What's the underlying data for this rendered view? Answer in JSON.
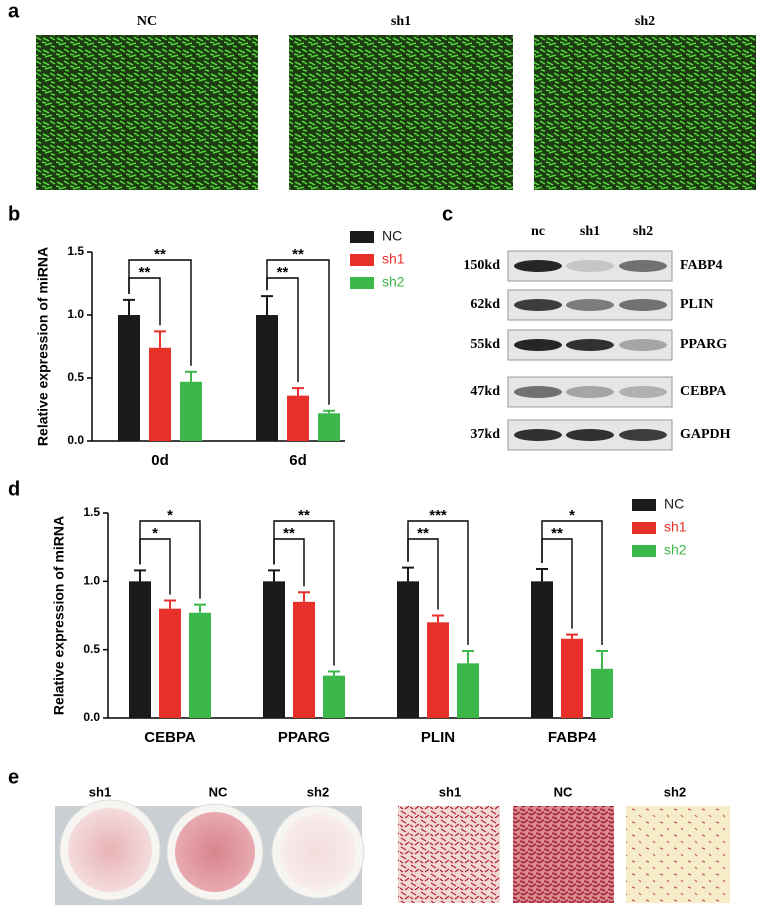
{
  "panels": [
    "a",
    "b",
    "c",
    "d",
    "e"
  ],
  "fluorescence": [
    "NC",
    "sh1",
    "sh2"
  ],
  "blot": {
    "lanes": [
      "nc",
      "sh1",
      "sh2"
    ],
    "rows": [
      {
        "size": "150kd",
        "protein": "FABP4"
      },
      {
        "size": "62kd",
        "protein": "PLIN"
      },
      {
        "size": "55kd",
        "protein": "PPARG"
      },
      {
        "size": "47kd",
        "protein": "CEBPA"
      },
      {
        "size": "37kd",
        "protein": "GAPDH"
      }
    ]
  },
  "staining": {
    "dishes": [
      "sh1",
      "NC",
      "sh2"
    ],
    "micrographs": [
      "sh1",
      "NC",
      "sh2"
    ]
  },
  "chart_data": [
    {
      "type": "bar",
      "ylabel": "Relative expression of miRNA",
      "categories": [
        "0d",
        "6d"
      ],
      "series": [
        {
          "name": "NC",
          "color": "#1a1a1a",
          "values": [
            1.0,
            1.0
          ],
          "errors": [
            0.12,
            0.15
          ]
        },
        {
          "name": "sh1",
          "color": "#e8302a",
          "values": [
            0.74,
            0.36
          ],
          "errors": [
            0.13,
            0.06
          ]
        },
        {
          "name": "sh2",
          "color": "#3cb84a",
          "values": [
            0.47,
            0.22
          ],
          "errors": [
            0.08,
            0.02
          ]
        }
      ],
      "significance": [
        [
          "**",
          "**"
        ],
        [
          "**",
          "**"
        ]
      ],
      "ylim": [
        0,
        1.5
      ],
      "yticks": [
        {
          "value": 0,
          "label": "0.0"
        },
        0.5,
        {
          "value": 1,
          "label": "1.0"
        },
        1.5
      ]
    },
    {
      "type": "bar",
      "ylabel": "Relative expression of miRNA",
      "categories": [
        "CEBPA",
        "PPARG",
        "PLIN",
        "FABP4"
      ],
      "series": [
        {
          "name": "NC",
          "color": "#1a1a1a",
          "values": [
            1.0,
            1.0,
            1.0,
            1.0
          ],
          "errors": [
            0.08,
            0.08,
            0.1,
            0.09
          ]
        },
        {
          "name": "sh1",
          "color": "#e8302a",
          "values": [
            0.8,
            0.85,
            0.7,
            0.58
          ],
          "errors": [
            0.06,
            0.07,
            0.05,
            0.03
          ]
        },
        {
          "name": "sh2",
          "color": "#3cb84a",
          "values": [
            0.77,
            0.31,
            0.4,
            0.36
          ],
          "errors": [
            0.06,
            0.03,
            0.09,
            0.13
          ]
        }
      ],
      "significance": [
        [
          "*",
          "*"
        ],
        [
          "**",
          "**"
        ],
        [
          "**",
          "***"
        ],
        [
          "**",
          "*"
        ]
      ],
      "ylim": [
        0,
        1.5
      ],
      "yticks": [
        {
          "value": 0,
          "label": "0.0"
        },
        0.5,
        {
          "value": 1,
          "label": "1.0"
        },
        1.5
      ]
    }
  ]
}
